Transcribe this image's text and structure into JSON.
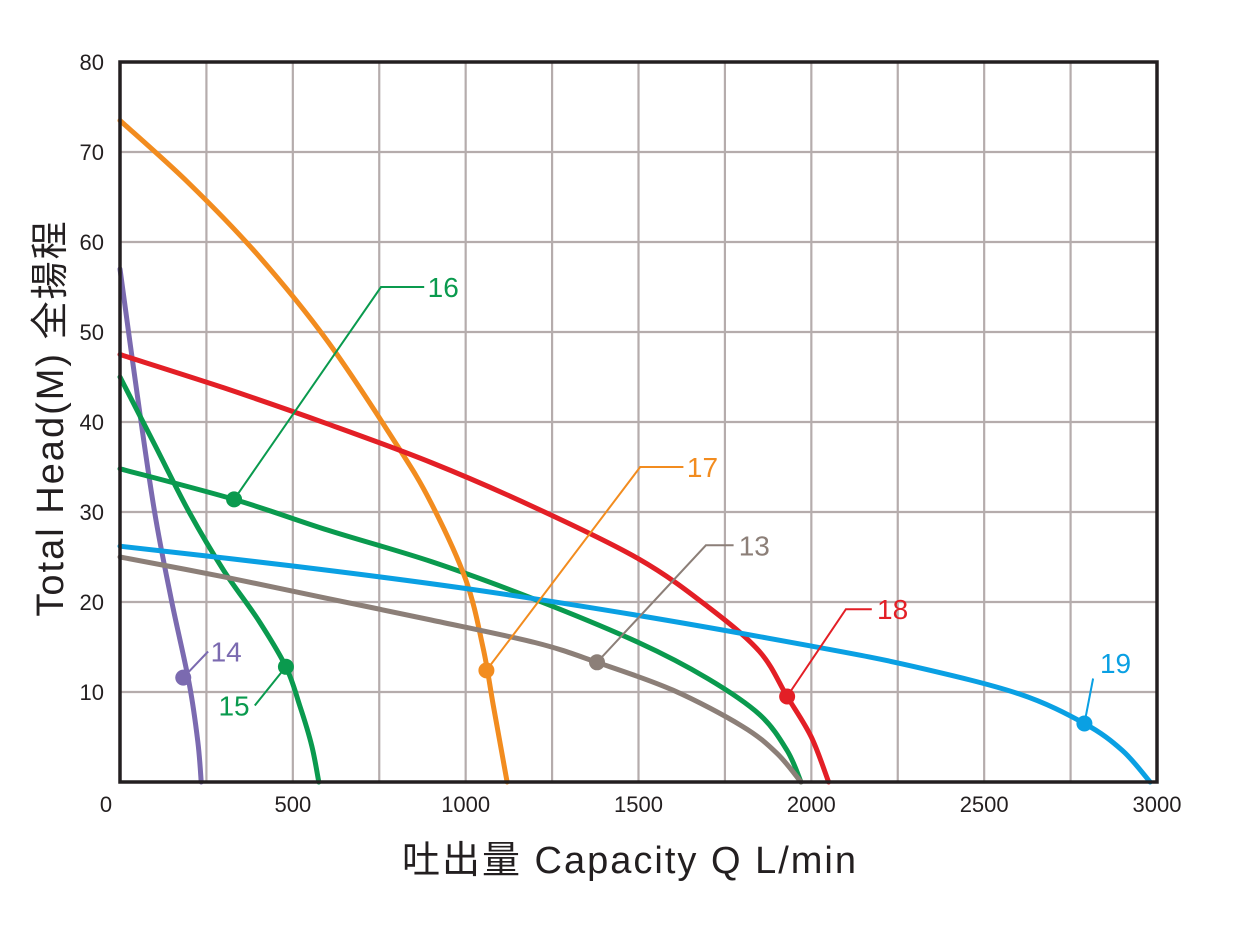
{
  "chart_data": {
    "type": "line",
    "xlabel": "吐出量 Capacity  Q L/min",
    "ylabel": "Total Head(M) 全揚程",
    "xlim": [
      0,
      3000
    ],
    "ylim": [
      0,
      80
    ],
    "x_ticks": [
      0,
      500,
      1000,
      1500,
      2000,
      2500,
      3000
    ],
    "y_ticks": [
      10,
      20,
      30,
      40,
      50,
      60,
      70,
      80
    ],
    "grid": true,
    "legend": "none",
    "series": [
      {
        "name": "14",
        "color": "#7b6ab0",
        "points": [
          [
            0,
            57
          ],
          [
            50,
            43
          ],
          [
            100,
            30
          ],
          [
            150,
            20
          ],
          [
            200,
            11
          ],
          [
            225,
            4.5
          ],
          [
            235,
            0
          ]
        ],
        "marker": [
          183,
          11.6
        ]
      },
      {
        "name": "15",
        "color": "#0a9a4e",
        "points": [
          [
            0,
            45
          ],
          [
            100,
            37.5
          ],
          [
            200,
            30
          ],
          [
            300,
            23.5
          ],
          [
            400,
            18
          ],
          [
            480,
            12.8
          ],
          [
            520,
            8.5
          ],
          [
            555,
            4
          ],
          [
            575,
            0
          ]
        ],
        "marker": [
          480,
          12.8
        ]
      },
      {
        "name": "16",
        "color": "#0a9a4e",
        "points": [
          [
            0,
            34.8
          ],
          [
            330,
            31.4
          ],
          [
            600,
            28
          ],
          [
            900,
            24.5
          ],
          [
            1200,
            20.3
          ],
          [
            1500,
            15.5
          ],
          [
            1700,
            11.5
          ],
          [
            1850,
            7.5
          ],
          [
            1930,
            3.5
          ],
          [
            1970,
            0
          ]
        ],
        "marker": [
          330,
          31.4
        ]
      },
      {
        "name": "17",
        "color": "#f28c1f",
        "points": [
          [
            0,
            73.5
          ],
          [
            200,
            66.5
          ],
          [
            400,
            58.5
          ],
          [
            600,
            49
          ],
          [
            800,
            37.5
          ],
          [
            900,
            31
          ],
          [
            1000,
            22.5
          ],
          [
            1050,
            15
          ],
          [
            1080,
            8.5
          ],
          [
            1120,
            0
          ]
        ],
        "marker": [
          1060,
          12.4
        ]
      },
      {
        "name": "13",
        "color": "#8c7f78",
        "points": [
          [
            0,
            25
          ],
          [
            300,
            22.8
          ],
          [
            600,
            20.4
          ],
          [
            900,
            18
          ],
          [
            1200,
            15.5
          ],
          [
            1380,
            13.3
          ],
          [
            1600,
            10.2
          ],
          [
            1800,
            6.2
          ],
          [
            1900,
            3.2
          ],
          [
            1970,
            0
          ]
        ],
        "marker": [
          1380,
          13.3
        ]
      },
      {
        "name": "18",
        "color": "#e31f26",
        "points": [
          [
            0,
            47.5
          ],
          [
            300,
            43.8
          ],
          [
            600,
            39.8
          ],
          [
            900,
            35.5
          ],
          [
            1200,
            30.5
          ],
          [
            1500,
            24.8
          ],
          [
            1700,
            19.5
          ],
          [
            1850,
            14.5
          ],
          [
            1930,
            9.5
          ],
          [
            2000,
            5
          ],
          [
            2050,
            0
          ]
        ],
        "marker": [
          1930,
          9.5
        ]
      },
      {
        "name": "19",
        "color": "#0aa0e3",
        "points": [
          [
            0,
            26.2
          ],
          [
            500,
            24
          ],
          [
            1000,
            21.5
          ],
          [
            1500,
            18.5
          ],
          [
            2000,
            15.1
          ],
          [
            2300,
            12.8
          ],
          [
            2600,
            9.8
          ],
          [
            2790,
            6.5
          ],
          [
            2900,
            3.5
          ],
          [
            2980,
            0
          ]
        ],
        "marker": [
          2790,
          6.5
        ]
      }
    ],
    "annotations": [
      {
        "text": "14",
        "color": "#7b6ab0",
        "point": [
          183,
          11.6
        ],
        "elbow": [
          255,
          14.5
        ],
        "end": [
          255,
          14.5
        ],
        "label_at": [
          262,
          14.5
        ],
        "anchor": "start"
      },
      {
        "text": "15",
        "color": "#0a9a4e",
        "point": [
          480,
          12.8
        ],
        "elbow": [
          390,
          8.5
        ],
        "end": [
          390,
          8.5
        ],
        "label_at": [
          375,
          8.5
        ],
        "anchor": "end"
      },
      {
        "text": "16",
        "color": "#0a9a4e",
        "point": [
          330,
          31.4
        ],
        "elbow": [
          755,
          55
        ],
        "end": [
          880,
          55
        ],
        "label_at": [
          890,
          55
        ],
        "anchor": "start"
      },
      {
        "text": "17",
        "color": "#f28c1f",
        "point": [
          1060,
          12.4
        ],
        "elbow": [
          1505,
          35
        ],
        "end": [
          1630,
          35
        ],
        "label_at": [
          1640,
          35
        ],
        "anchor": "start"
      },
      {
        "text": "13",
        "color": "#8c7f78",
        "point": [
          1380,
          13.3
        ],
        "elbow": [
          1695,
          26.3
        ],
        "end": [
          1775,
          26.3
        ],
        "label_at": [
          1790,
          26.3
        ],
        "anchor": "start"
      },
      {
        "text": "18",
        "color": "#e31f26",
        "point": [
          1930,
          9.5
        ],
        "elbow": [
          2100,
          19.2
        ],
        "end": [
          2175,
          19.2
        ],
        "label_at": [
          2190,
          19.2
        ],
        "anchor": "start"
      },
      {
        "text": "19",
        "color": "#0aa0e3",
        "point": [
          2790,
          6.5
        ],
        "elbow": [
          2815,
          11.5
        ],
        "end": [
          2815,
          11.5
        ],
        "label_at": [
          2835,
          13.2
        ],
        "anchor": "start"
      }
    ]
  }
}
